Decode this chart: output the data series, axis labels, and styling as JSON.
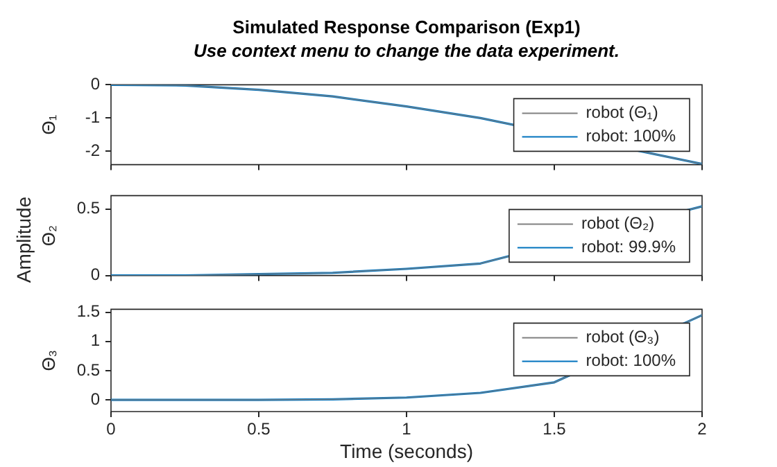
{
  "chart_data": [
    {
      "type": "line",
      "title": "Simulated Response Comparison (Exp1)",
      "subtitle": "Use context menu to change the data experiment.",
      "ylabel": "Θ₁",
      "x": [
        0,
        0.25,
        0.5,
        0.75,
        1,
        1.25,
        1.5,
        1.75,
        2
      ],
      "xlim": [
        0,
        2
      ],
      "xticks": [
        0,
        0.5,
        1,
        1.5,
        2
      ],
      "ylim": [
        -2.4,
        0
      ],
      "yticks": [
        0,
        -1,
        -2
      ],
      "tick_labels": "y",
      "legend": "top right",
      "series": [
        {
          "name": "robot (Θ₁)",
          "color": "#808080",
          "values": [
            0,
            -0.02,
            -0.15,
            -0.35,
            -0.65,
            -1.0,
            null,
            null,
            -2.38
          ]
        },
        {
          "name": "robot: 100%",
          "color": "#0072bd",
          "values": [
            0,
            -0.02,
            -0.15,
            -0.35,
            -0.65,
            -1.0,
            null,
            null,
            -2.38
          ]
        }
      ]
    },
    {
      "type": "line",
      "ylabel": "Θ₂",
      "annotations": [
        "Amplitude"
      ],
      "x": [
        0,
        0.25,
        0.5,
        0.75,
        1,
        1.25,
        1.5,
        1.75,
        1.9,
        2
      ],
      "xlim": [
        0,
        2
      ],
      "xticks": [
        0,
        0.5,
        1,
        1.5,
        2
      ],
      "ylim": [
        0,
        0.6
      ],
      "yticks": [
        0,
        0.5
      ],
      "tick_labels": "y",
      "legend": "top right",
      "series": [
        {
          "name": "robot (Θ₂)",
          "color": "#808080",
          "values": [
            0,
            0,
            0.01,
            0.02,
            0.05,
            0.09,
            null,
            null,
            null,
            0.52
          ]
        },
        {
          "name": "robot: 99.9%",
          "color": "#0072bd",
          "values": [
            0,
            0,
            0.01,
            0.02,
            0.05,
            0.09,
            null,
            null,
            null,
            0.52
          ]
        }
      ]
    },
    {
      "type": "line",
      "ylabel": "Θ₃",
      "xlabel": "Time (seconds)",
      "x": [
        0,
        0.25,
        0.5,
        0.75,
        1,
        1.25,
        1.5,
        1.75,
        1.9,
        2
      ],
      "xlim": [
        0,
        2
      ],
      "xticks": [
        0,
        0.5,
        1,
        1.5,
        2
      ],
      "ylim": [
        -0.2,
        1.55
      ],
      "yticks": [
        0,
        0.5,
        1,
        1.5
      ],
      "legend": "top right",
      "series": [
        {
          "name": "robot (Θ₃)",
          "color": "#808080",
          "values": [
            0,
            0,
            0,
            0.01,
            0.04,
            0.12,
            0.3,
            null,
            null,
            1.45
          ]
        },
        {
          "name": "robot: 100%",
          "color": "#0072bd",
          "values": [
            0,
            0,
            0,
            0.01,
            0.04,
            0.12,
            0.3,
            null,
            null,
            1.45
          ]
        }
      ]
    }
  ]
}
